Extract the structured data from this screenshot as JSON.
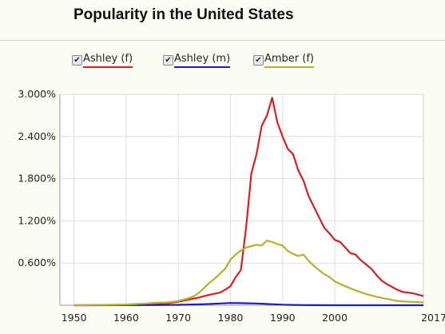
{
  "title": "Popularity  in the United States",
  "legend": [
    {
      "label": "Ashley (f)",
      "color": "#d42020",
      "checked": true
    },
    {
      "label": "Ashley (m)",
      "color": "#1a1acc",
      "checked": true
    },
    {
      "label": "Amber (f)",
      "color": "#b5b02a",
      "checked": true
    }
  ],
  "chart_data": {
    "type": "line",
    "ylim": [
      0,
      3.0
    ],
    "xlim": [
      1950,
      2017
    ],
    "ytick_labels": [
      "3.000%",
      "2.400%",
      "1.800%",
      "1.200%",
      "0.600%"
    ],
    "ytick_values": [
      3.0,
      2.4,
      1.8,
      1.2,
      0.6
    ],
    "xtick_labels": [
      "1950",
      "1960",
      "1970",
      "1980",
      "1990",
      "2000",
      "2017"
    ],
    "xtick_values": [
      1950,
      1960,
      1970,
      1980,
      1990,
      2000,
      2017
    ],
    "grid": true,
    "series": [
      {
        "name": "Ashley (f)",
        "color": "#d42020",
        "x": [
          1950,
          1955,
          1960,
          1964,
          1966,
          1968,
          1970,
          1972,
          1974,
          1976,
          1978,
          1979,
          1980,
          1981,
          1982,
          1983,
          1984,
          1985,
          1986,
          1987,
          1988,
          1989,
          1990,
          1991,
          1992,
          1993,
          1994,
          1995,
          1996,
          1997,
          1998,
          1999,
          2000,
          2001,
          2002,
          2003,
          2004,
          2005,
          2006,
          2007,
          2008,
          2009,
          2010,
          2011,
          2012,
          2013,
          2014,
          2015,
          2016,
          2017
        ],
        "y": [
          0,
          0,
          0.002,
          0.01,
          0.02,
          0.03,
          0.05,
          0.08,
          0.11,
          0.15,
          0.18,
          0.22,
          0.27,
          0.4,
          0.5,
          1.1,
          1.87,
          2.15,
          2.55,
          2.7,
          2.95,
          2.6,
          2.4,
          2.22,
          2.15,
          1.92,
          1.77,
          1.55,
          1.4,
          1.25,
          1.1,
          1.02,
          0.93,
          0.9,
          0.82,
          0.74,
          0.72,
          0.64,
          0.58,
          0.52,
          0.43,
          0.35,
          0.3,
          0.26,
          0.22,
          0.19,
          0.18,
          0.17,
          0.15,
          0.13
        ]
      },
      {
        "name": "Ashley (m)",
        "color": "#1a1acc",
        "x": [
          1950,
          1965,
          1970,
          1975,
          1978,
          1980,
          1982,
          1985,
          1988,
          1990,
          1992,
          1994,
          1995,
          2000,
          2017
        ],
        "y": [
          0,
          0.002,
          0.006,
          0.015,
          0.025,
          0.032,
          0.03,
          0.025,
          0.015,
          0.008,
          0.004,
          0.002,
          0.001,
          0,
          0
        ]
      },
      {
        "name": "Amber (f)",
        "color": "#b5b02a",
        "x": [
          1950,
          1955,
          1960,
          1964,
          1966,
          1968,
          1970,
          1971,
          1972,
          1973,
          1974,
          1975,
          1976,
          1977,
          1978,
          1979,
          1980,
          1981,
          1982,
          1983,
          1984,
          1985,
          1986,
          1987,
          1988,
          1989,
          1990,
          1991,
          1992,
          1993,
          1994,
          1995,
          1996,
          1997,
          1998,
          1999,
          2000,
          2002,
          2004,
          2006,
          2008,
          2010,
          2012,
          2014,
          2017
        ],
        "y": [
          0,
          0.003,
          0.01,
          0.025,
          0.035,
          0.04,
          0.06,
          0.08,
          0.1,
          0.13,
          0.18,
          0.25,
          0.32,
          0.38,
          0.45,
          0.52,
          0.65,
          0.72,
          0.78,
          0.82,
          0.84,
          0.86,
          0.85,
          0.92,
          0.9,
          0.87,
          0.85,
          0.77,
          0.73,
          0.7,
          0.72,
          0.63,
          0.56,
          0.5,
          0.44,
          0.4,
          0.34,
          0.27,
          0.21,
          0.16,
          0.12,
          0.09,
          0.06,
          0.05,
          0.04
        ]
      }
    ]
  }
}
